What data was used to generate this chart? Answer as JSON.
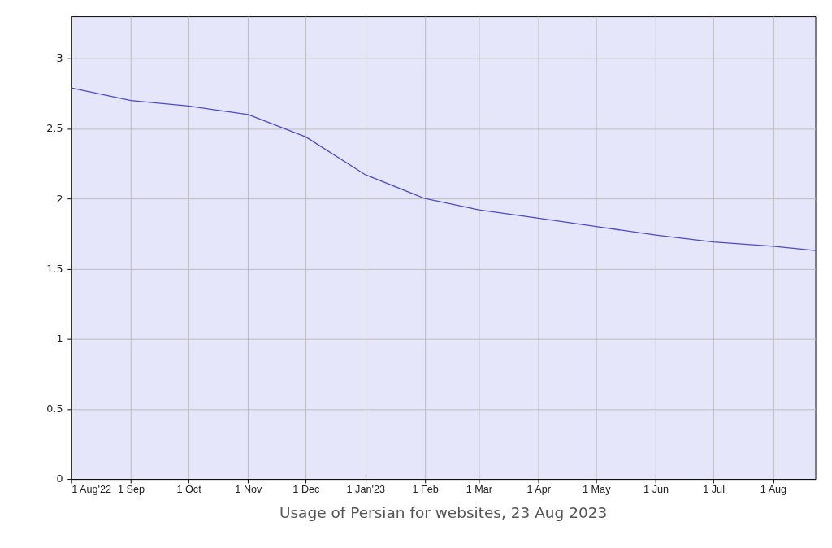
{
  "chart_data": {
    "type": "line",
    "title": "Usage of Persian for websites, 23 Aug 2023",
    "x": [
      "2022-08-01",
      "2022-09-01",
      "2022-10-01",
      "2022-11-01",
      "2022-12-01",
      "2023-01-01",
      "2023-02-01",
      "2023-03-01",
      "2023-04-01",
      "2023-05-01",
      "2023-06-01",
      "2023-07-01",
      "2023-08-01",
      "2023-08-23"
    ],
    "series": [
      {
        "color": "#4b4bc8",
        "values": [
          2.79,
          2.7,
          2.66,
          2.6,
          2.44,
          2.17,
          2.0,
          1.92,
          1.86,
          1.8,
          1.74,
          1.69,
          1.66,
          1.63
        ]
      }
    ],
    "xlim": [
      "2022-08-01",
      "2023-08-23"
    ],
    "xticks": [
      {
        "value": "2022-08-01",
        "label": "1 Aug'22"
      },
      {
        "value": "2022-09-01",
        "label": "1 Sep"
      },
      {
        "value": "2022-10-01",
        "label": "1 Oct"
      },
      {
        "value": "2022-11-01",
        "label": "1 Nov"
      },
      {
        "value": "2022-12-01",
        "label": "1 Dec"
      },
      {
        "value": "2023-01-01",
        "label": "1 Jan'23"
      },
      {
        "value": "2023-02-01",
        "label": "1 Feb"
      },
      {
        "value": "2023-03-01",
        "label": "1 Mar"
      },
      {
        "value": "2023-04-01",
        "label": "1 Apr"
      },
      {
        "value": "2023-05-01",
        "label": "1 May"
      },
      {
        "value": "2023-06-01",
        "label": "1 Jun"
      },
      {
        "value": "2023-07-01",
        "label": "1 Jul"
      },
      {
        "value": "2023-08-01",
        "label": "1 Aug"
      }
    ],
    "ylim": [
      0,
      3.3
    ],
    "yticks": [
      0,
      0.5,
      1,
      1.5,
      2,
      2.5,
      3
    ],
    "grid": true,
    "marker": "none",
    "line_style": "solid"
  }
}
